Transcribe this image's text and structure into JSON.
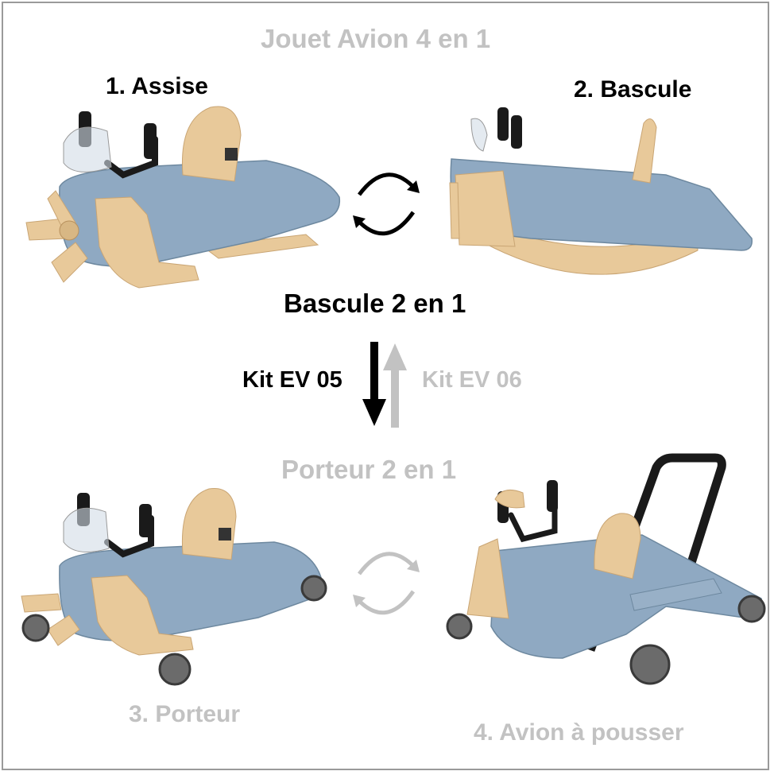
{
  "title": "Jouet Avion 4 en 1",
  "rocker_group_title": "Bascule 2 en 1",
  "carrier_group_title": "Porteur 2 en 1",
  "modes": [
    {
      "label": "1. Assise"
    },
    {
      "label": "2. Bascule"
    },
    {
      "label": "3. Porteur"
    },
    {
      "label": "4. Avion à pousser"
    }
  ],
  "kits": {
    "down": "Kit EV 05",
    "up": "Kit EV 06"
  },
  "colors": {
    "active": "#000000",
    "inactive": "#c2c2c2",
    "body_blue": "#8fa9c2",
    "wood": "#e8c99a",
    "frame": "#9a9a9a"
  },
  "icons": [
    "cycle-arrows-icon",
    "cycle-arrows-icon",
    "arrow-down-icon",
    "arrow-up-icon"
  ]
}
